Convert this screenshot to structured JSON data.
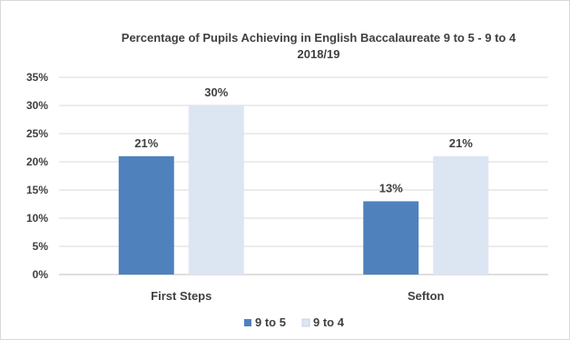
{
  "chart_data": {
    "type": "bar",
    "title_line1": "Percentage of Pupils Achieving in English Baccalaureate  9 to 5 -  9 to 4",
    "title_line2": "2018/19",
    "categories": [
      "First Steps",
      "Sefton"
    ],
    "series": [
      {
        "name": "9 to 5",
        "values": [
          21,
          13
        ],
        "labels": [
          "21%",
          "13%"
        ],
        "color": "#4f81bd"
      },
      {
        "name": "9 to 4",
        "values": [
          30,
          21
        ],
        "labels": [
          "30%",
          "21%"
        ],
        "color": "#dce6f2"
      }
    ],
    "y_ticks": [
      "0%",
      "5%",
      "10%",
      "15%",
      "20%",
      "25%",
      "30%",
      "35%"
    ],
    "y_tick_values": [
      0,
      5,
      10,
      15,
      20,
      25,
      30,
      35
    ],
    "ylim": [
      0,
      35
    ],
    "grid": true,
    "legend_position": "bottom"
  }
}
